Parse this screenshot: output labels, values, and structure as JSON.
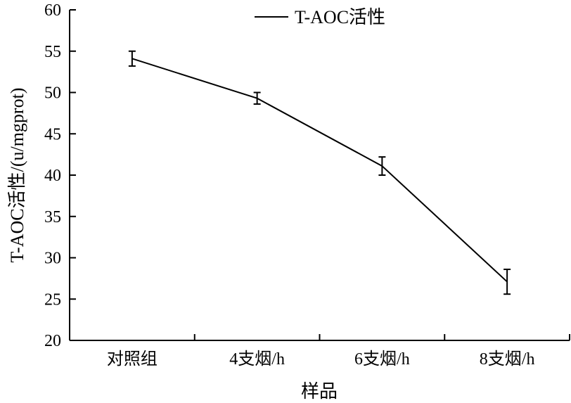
{
  "chart_data": {
    "type": "line",
    "title": "",
    "xlabel": "样品",
    "ylabel": "T-AOC活性/(u/mgprot)",
    "categories": [
      "对照组",
      "4支烟/h",
      "6支烟/h",
      "8支烟/h"
    ],
    "series": [
      {
        "name": "T-AOC活性",
        "values": [
          54.1,
          49.3,
          41.1,
          27.1
        ],
        "errors": [
          0.9,
          0.7,
          1.1,
          1.5
        ],
        "color": "#000000"
      }
    ],
    "ylim": [
      20,
      60
    ],
    "yticks": [
      20,
      25,
      30,
      35,
      40,
      45,
      50,
      55,
      60
    ],
    "grid": false,
    "legend_position": "top-center"
  }
}
